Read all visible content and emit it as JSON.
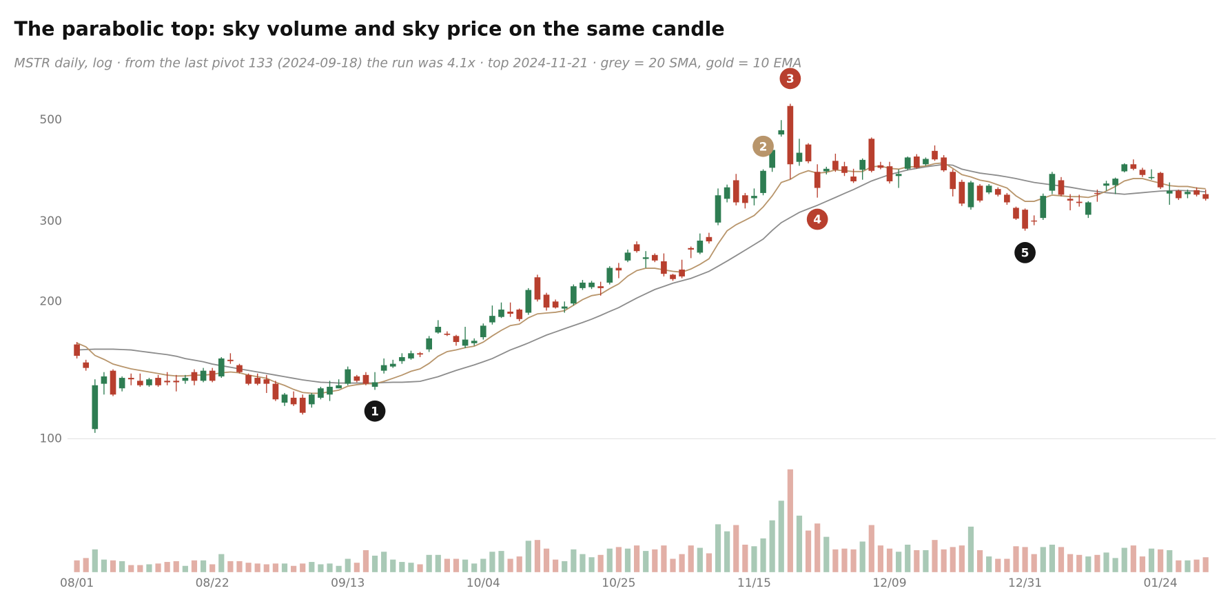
{
  "chart_data": {
    "type": "candlestick",
    "title": "The parabolic top: sky volume and sky price on the same candle",
    "subtitle": "MSTR daily, log · from the last pivot 133 (2024-09-18) the run was 4.1x · top 2024-11-21 · grey = 20 SMA, gold = 10 EMA",
    "log_scale": true,
    "grid": false,
    "ylim": [
      100,
      660
    ],
    "yticks": [
      100,
      200,
      300,
      500
    ],
    "up_color": "#2e7d52",
    "down_color": "#b83f2e",
    "categories": [
      "08/01",
      null,
      null,
      null,
      null,
      null,
      null,
      null,
      null,
      null,
      null,
      null,
      null,
      null,
      null,
      "08/22",
      null,
      null,
      null,
      null,
      null,
      null,
      null,
      null,
      null,
      null,
      null,
      null,
      null,
      null,
      "09/13",
      null,
      null,
      null,
      null,
      null,
      null,
      null,
      null,
      null,
      null,
      null,
      null,
      null,
      null,
      "10/04",
      null,
      null,
      null,
      null,
      null,
      null,
      null,
      null,
      null,
      null,
      null,
      null,
      null,
      null,
      "10/25",
      null,
      null,
      null,
      null,
      null,
      null,
      null,
      null,
      null,
      null,
      null,
      null,
      null,
      null,
      "11/15",
      null,
      null,
      null,
      null,
      null,
      null,
      null,
      null,
      null,
      null,
      null,
      null,
      null,
      null,
      "12/09",
      null,
      null,
      null,
      null,
      null,
      null,
      null,
      null,
      null,
      null,
      null,
      null,
      null,
      null,
      "12/31",
      null,
      null,
      null,
      null,
      null,
      null,
      null,
      null,
      null,
      null,
      null,
      null,
      null,
      null,
      "01/24",
      null,
      null,
      null,
      null,
      null
    ],
    "ohlc": [
      [
        161,
        163,
        150,
        152
      ],
      [
        147,
        149,
        141,
        143
      ],
      [
        105,
        135,
        103,
        131
      ],
      [
        132,
        140,
        125,
        137
      ],
      [
        141,
        142,
        124,
        125
      ],
      [
        129,
        137,
        127,
        136
      ],
      [
        136,
        139,
        131,
        135
      ],
      [
        134,
        139,
        130,
        131
      ],
      [
        131,
        136,
        130,
        135
      ],
      [
        136,
        138,
        130,
        131
      ],
      [
        134,
        140,
        131,
        133
      ],
      [
        134,
        138,
        127,
        133
      ],
      [
        134,
        138,
        132,
        136
      ],
      [
        140,
        142,
        131,
        134
      ],
      [
        134,
        143,
        133,
        141
      ],
      [
        141,
        143,
        133,
        134
      ],
      [
        137,
        151,
        136,
        150
      ],
      [
        149,
        154,
        146,
        148
      ],
      [
        145,
        146,
        139,
        140
      ],
      [
        138,
        139,
        131,
        132
      ],
      [
        136,
        139,
        131,
        132
      ],
      [
        135,
        138,
        126,
        132
      ],
      [
        132,
        134,
        121,
        122
      ],
      [
        120,
        126,
        118,
        125
      ],
      [
        123,
        127,
        118,
        119
      ],
      [
        123,
        125,
        113,
        114
      ],
      [
        119,
        126,
        117,
        125
      ],
      [
        123,
        130,
        122,
        129
      ],
      [
        125,
        134,
        121,
        130
      ],
      [
        129,
        135,
        129,
        131
      ],
      [
        132,
        144,
        131,
        142
      ],
      [
        137,
        138,
        133,
        134
      ],
      [
        138,
        140,
        131,
        132
      ],
      [
        130,
        140,
        128,
        133
      ],
      [
        141,
        150,
        139,
        145
      ],
      [
        144,
        149,
        143,
        146
      ],
      [
        148,
        154,
        146,
        151
      ],
      [
        150,
        156,
        149,
        154
      ],
      [
        154,
        155,
        151,
        153
      ],
      [
        157,
        168,
        155,
        166
      ],
      [
        171,
        182,
        170,
        176
      ],
      [
        170,
        172,
        168,
        169
      ],
      [
        168,
        169,
        160,
        163
      ],
      [
        160,
        176,
        158,
        165
      ],
      [
        162,
        166,
        160,
        164
      ],
      [
        167,
        179,
        165,
        177
      ],
      [
        180,
        196,
        178,
        186
      ],
      [
        185,
        199,
        184,
        192
      ],
      [
        190,
        199,
        185,
        188
      ],
      [
        192,
        193,
        181,
        183
      ],
      [
        189,
        214,
        187,
        212
      ],
      [
        226,
        229,
        200,
        202
      ],
      [
        207,
        209,
        191,
        194
      ],
      [
        200,
        202,
        193,
        194
      ],
      [
        193,
        200,
        189,
        195
      ],
      [
        198,
        218,
        196,
        216
      ],
      [
        214,
        223,
        212,
        220
      ],
      [
        215,
        222,
        213,
        220
      ],
      [
        216,
        221,
        206,
        214
      ],
      [
        220,
        239,
        218,
        237
      ],
      [
        237,
        243,
        225,
        234
      ],
      [
        246,
        260,
        244,
        256
      ],
      [
        267,
        271,
        256,
        258
      ],
      [
        248,
        258,
        237,
        250
      ],
      [
        253,
        255,
        244,
        246
      ],
      [
        245,
        255,
        227,
        230
      ],
      [
        229,
        230,
        222,
        224
      ],
      [
        235,
        247,
        225,
        227
      ],
      [
        262,
        264,
        249,
        260
      ],
      [
        256,
        282,
        254,
        272
      ],
      [
        277,
        283,
        268,
        271
      ],
      [
        298,
        354,
        294,
        342
      ],
      [
        336,
        361,
        330,
        356
      ],
      [
        369,
        381,
        325,
        330
      ],
      [
        342,
        346,
        320,
        329
      ],
      [
        337,
        354,
        325,
        341
      ],
      [
        346,
        390,
        342,
        387
      ],
      [
        393,
        445,
        385,
        430
      ],
      [
        465,
        500,
        460,
        475
      ],
      [
        537,
        543,
        371,
        400
      ],
      [
        405,
        455,
        397,
        424
      ],
      [
        442,
        445,
        402,
        406
      ],
      [
        385,
        400,
        338,
        355
      ],
      [
        386,
        395,
        380,
        391
      ],
      [
        407,
        422,
        385,
        389
      ],
      [
        396,
        405,
        377,
        383
      ],
      [
        376,
        391,
        364,
        367
      ],
      [
        389,
        412,
        370,
        409
      ],
      [
        455,
        458,
        384,
        387
      ],
      [
        398,
        405,
        390,
        393
      ],
      [
        396,
        405,
        363,
        367
      ],
      [
        377,
        390,
        355,
        381
      ],
      [
        391,
        416,
        388,
        414
      ],
      [
        416,
        421,
        391,
        393
      ],
      [
        400,
        414,
        397,
        411
      ],
      [
        428,
        440,
        407,
        410
      ],
      [
        414,
        419,
        385,
        388
      ],
      [
        385,
        390,
        340,
        353
      ],
      [
        366,
        370,
        324,
        328
      ],
      [
        322,
        368,
        318,
        365
      ],
      [
        359,
        362,
        330,
        333
      ],
      [
        347,
        362,
        344,
        359
      ],
      [
        353,
        356,
        340,
        343
      ],
      [
        343,
        346,
        326,
        330
      ],
      [
        321,
        323,
        302,
        304
      ],
      [
        318,
        320,
        286,
        289
      ],
      [
        301,
        309,
        294,
        300
      ],
      [
        305,
        345,
        302,
        341
      ],
      [
        350,
        385,
        344,
        381
      ],
      [
        369,
        375,
        340,
        343
      ],
      [
        336,
        344,
        317,
        333
      ],
      [
        331,
        343,
        323,
        329
      ],
      [
        310,
        332,
        305,
        330
      ],
      [
        346,
        352,
        331,
        345
      ],
      [
        359,
        368,
        350,
        363
      ],
      [
        360,
        374,
        344,
        372
      ],
      [
        386,
        402,
        384,
        400
      ],
      [
        400,
        410,
        388,
        391
      ],
      [
        389,
        393,
        375,
        379
      ],
      [
        373,
        390,
        370,
        375
      ],
      [
        383,
        385,
        353,
        356
      ],
      [
        345,
        365,
        326,
        350
      ],
      [
        350,
        352,
        334,
        337
      ],
      [
        344,
        352,
        337,
        348
      ],
      [
        351,
        356,
        340,
        343
      ],
      [
        344,
        352,
        333,
        336
      ]
    ],
    "overlays": [
      {
        "color": "#8c8c8c",
        "values": [
          156.6,
          156.9,
          157.2,
          157.2,
          157.2,
          156.9,
          156.6,
          155.6,
          154.7,
          153.8,
          152.9,
          151.7,
          149.9,
          148.7,
          147.5,
          145.8,
          144.6,
          143.5,
          142.3,
          141.2,
          140.1,
          139.0,
          137.9,
          136.8,
          135.7,
          134.6,
          133.8,
          133.0,
          132.8,
          132.5,
          132.5,
          132.5,
          132.5,
          132.5,
          132.8,
          133.0,
          133.0,
          133.3,
          133.6,
          135.2,
          136.8,
          139.0,
          141.2,
          143.2,
          145.2,
          147.5,
          149.9,
          153.2,
          156.6,
          159.3,
          162.2,
          165.5,
          168.8,
          171.5,
          174.3,
          177.1,
          179.9,
          182.9,
          186.4,
          190.2,
          193.9,
          198.7,
          203.5,
          208.0,
          212.5,
          215.9,
          219.4,
          222.1,
          224.8,
          228.8,
          232.9,
          239.0,
          245.3,
          252.1,
          259.2,
          266.5,
          274.1,
          286.4,
          297.8,
          305.7,
          313.7,
          319.4,
          325.1,
          331.7,
          338.3,
          345.2,
          352.0,
          359.8,
          367.7,
          373.7,
          379.6,
          384.1,
          388.7,
          391.8,
          394.9,
          397.3,
          399.7,
          398.1,
          390.3,
          386.4,
          382.6,
          380.3,
          378.1,
          375.2,
          372.2,
          368.5,
          364.9,
          362.7,
          360.5,
          358.4,
          356.2,
          353.4,
          350.6,
          348.6,
          346.6,
          345.2,
          343.8,
          345.2,
          346.6,
          348.0,
          349.4,
          350.0,
          350.6,
          350.0,
          349.4,
          348.0
        ]
      },
      {
        "color": "#b8956b",
        "values": [
          162.2,
          159.1,
          152.3,
          149.3,
          145.8,
          144.0,
          142.3,
          141.2,
          140.1,
          139.0,
          137.9,
          137.3,
          137.3,
          137.9,
          137.9,
          138.4,
          139.5,
          140.1,
          139.5,
          137.9,
          136.8,
          135.7,
          133.0,
          130.9,
          128.3,
          126.3,
          125.8,
          125.8,
          126.8,
          127.8,
          130.4,
          131.4,
          132.0,
          132.0,
          133.6,
          135.7,
          137.9,
          140.6,
          142.3,
          146.3,
          151.7,
          155.3,
          156.6,
          158.4,
          159.6,
          162.9,
          168.1,
          172.9,
          177.1,
          178.5,
          184.2,
          187.9,
          188.7,
          189.4,
          190.9,
          196.3,
          201.9,
          206.0,
          207.6,
          213.4,
          218.6,
          227.4,
          233.8,
          236.6,
          236.6,
          234.7,
          232.9,
          232.0,
          235.7,
          241.3,
          248.2,
          267.6,
          285.8,
          294.8,
          301.5,
          308.8,
          322.5,
          341.0,
          364.9,
          370.7,
          381.1,
          387.2,
          382.6,
          384.1,
          388.7,
          387.2,
          385.6,
          385.6,
          394.9,
          396.5,
          391.8,
          390.3,
          394.9,
          394.9,
          396.5,
          401.3,
          402.9,
          391.8,
          379.6,
          375.2,
          369.2,
          366.3,
          360.5,
          354.8,
          341.0,
          331.7,
          331.7,
          337.0,
          342.4,
          341.0,
          339.7,
          339.7,
          338.3,
          342.4,
          349.4,
          357.6,
          367.7,
          372.2,
          372.2,
          367.7,
          363.5,
          359.1,
          357.6,
          357.6,
          354.8,
          353.4
        ]
      }
    ],
    "volume": {
      "up_color": "#a9c9b6",
      "down_color": "#e2afa6",
      "ylim": [
        0,
        140
      ],
      "values": [
        15,
        18,
        29,
        16,
        15,
        14,
        9,
        9,
        10,
        11,
        13,
        14,
        8,
        15,
        15,
        10,
        23,
        14,
        14,
        12,
        11,
        10,
        11,
        11,
        8,
        11,
        13,
        10,
        11,
        8,
        17,
        12,
        28,
        21,
        26,
        16,
        13,
        12,
        10,
        22,
        22,
        17,
        17,
        16,
        11,
        17,
        26,
        27,
        17,
        20,
        40,
        41,
        30,
        16,
        14,
        29,
        23,
        19,
        22,
        30,
        32,
        30,
        34,
        27,
        29,
        34,
        17,
        23,
        34,
        31,
        24,
        61,
        52,
        60,
        35,
        33,
        43,
        66,
        91,
        131,
        72,
        53,
        62,
        45,
        29,
        30,
        29,
        39,
        60,
        34,
        30,
        26,
        35,
        28,
        28,
        41,
        29,
        32,
        34,
        58,
        28,
        20,
        17,
        17,
        33,
        32,
        23,
        32,
        35,
        32,
        23,
        22,
        20,
        22,
        25,
        18,
        31,
        34,
        20,
        30,
        29,
        28,
        15,
        15,
        16,
        19
      ]
    },
    "markers": [
      {
        "label": "1",
        "at": 33,
        "y": 115,
        "color": "#151515"
      },
      {
        "label": "2",
        "at": 76,
        "y": 438,
        "color": "#b8956b"
      },
      {
        "label": "3",
        "at": 79,
        "y": 617,
        "color": "#b83f2e"
      },
      {
        "label": "4",
        "at": 82,
        "y": 303,
        "color": "#b83f2e"
      },
      {
        "label": "5",
        "at": 105,
        "y": 256,
        "color": "#151515"
      }
    ]
  }
}
